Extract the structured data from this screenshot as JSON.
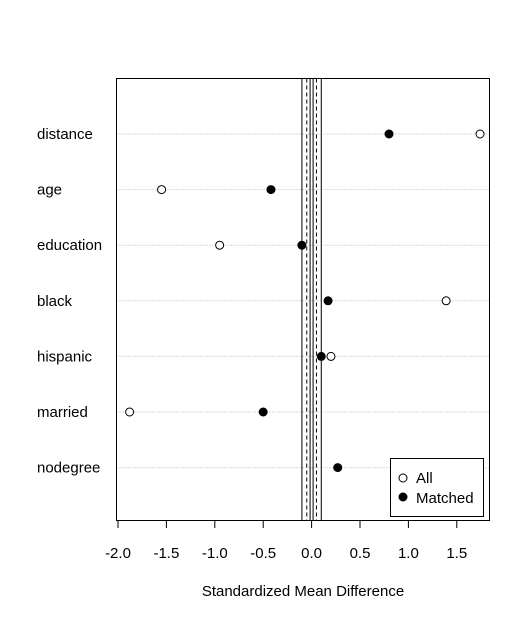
{
  "chart_data": {
    "type": "scatter",
    "title": "",
    "xlabel": "Standardized Mean Difference",
    "ylabel": "",
    "xlim": [
      -2.0,
      1.5
    ],
    "x_ticks": [
      "-2.0",
      "-1.5",
      "-1.0",
      "-0.5",
      "0.0",
      "0.5",
      "1.0",
      "1.5"
    ],
    "categories": [
      "distance",
      "age",
      "education",
      "black",
      "hispanic",
      "married",
      "nodegree"
    ],
    "series": [
      {
        "name": "All",
        "marker": "open-circle",
        "values": [
          1.74,
          -1.55,
          -0.95,
          1.39,
          0.2,
          -1.88,
          null
        ]
      },
      {
        "name": "Matched",
        "marker": "filled-circle",
        "values": [
          0.8,
          -0.42,
          -0.1,
          0.17,
          0.1,
          -0.5,
          0.27
        ]
      }
    ],
    "reference_lines": {
      "solid": [
        -0.1,
        0.1
      ],
      "dashed": [
        -0.05,
        0.05
      ],
      "double_solid": [
        0.0
      ]
    },
    "grid": "dotted-horizontal-per-category",
    "legend_position": "bottom-right"
  }
}
